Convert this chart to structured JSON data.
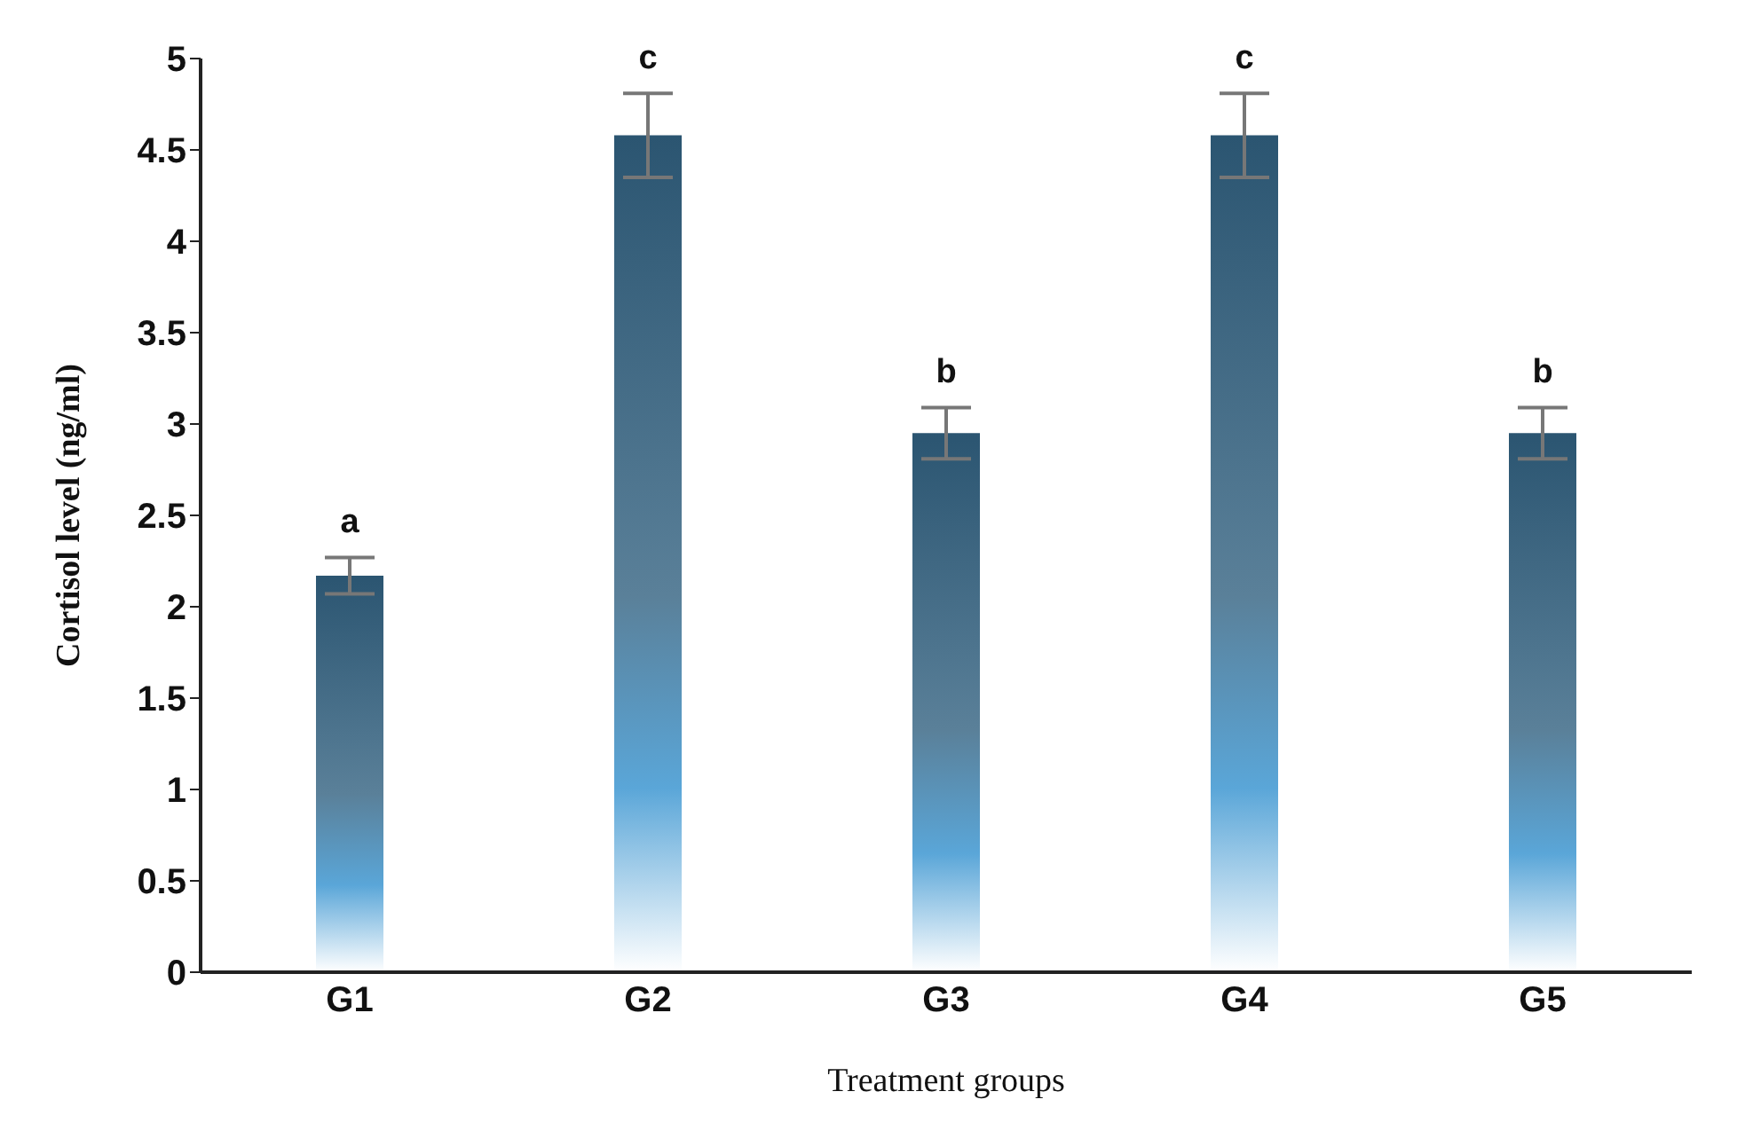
{
  "chart_data": {
    "type": "bar",
    "xlabel": "Treatment groups",
    "ylabel": "Cortisol level (ng/ml)",
    "categories": [
      "G1",
      "G2",
      "G3",
      "G4",
      "G5"
    ],
    "values": [
      2.17,
      4.58,
      2.95,
      4.58,
      2.95
    ],
    "errors": [
      0.1,
      0.23,
      0.14,
      0.23,
      0.14
    ],
    "color": "#2b5571",
    "ylim": [
      0,
      5
    ],
    "yticks": [
      0,
      0.5,
      1,
      1.5,
      2,
      2.5,
      3,
      3.5,
      4,
      4.5,
      5
    ],
    "annotations": [
      {
        "text": "a",
        "x": "G1",
        "y": 2.27
      },
      {
        "text": "c",
        "x": "G2",
        "y": 4.81
      },
      {
        "text": "b",
        "x": "G3",
        "y": 3.09
      },
      {
        "text": "c",
        "x": "G4",
        "y": 4.81
      },
      {
        "text": "b",
        "x": "G5",
        "y": 3.09
      }
    ]
  }
}
